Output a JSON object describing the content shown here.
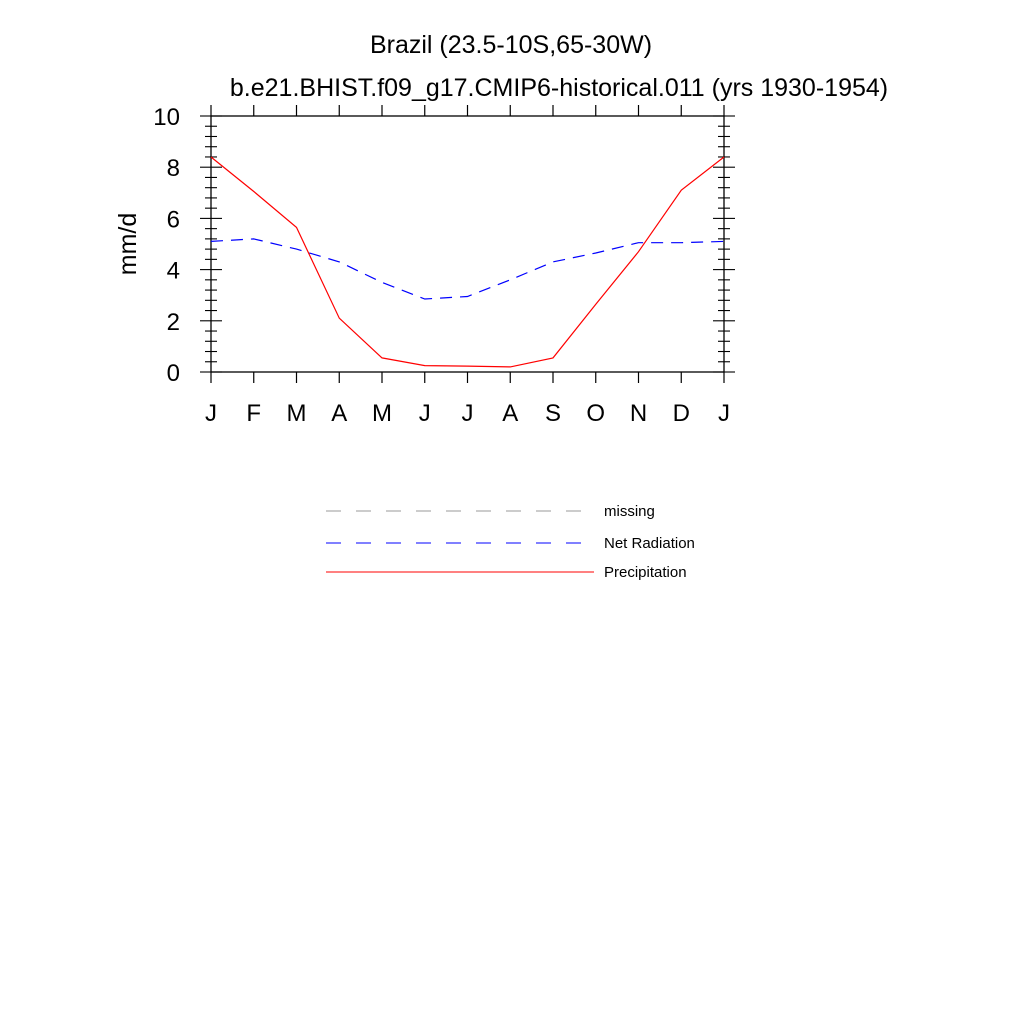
{
  "chart_data": {
    "type": "line",
    "title": "Brazil (23.5-10S,65-30W)",
    "subtitle": "b.e21.BHIST.f09_g17.CMIP6-historical.011 (yrs 1930-1954)",
    "ylabel": "mm/d",
    "xlabel": "",
    "categories": [
      "J",
      "F",
      "M",
      "A",
      "M",
      "J",
      "J",
      "A",
      "S",
      "O",
      "N",
      "D",
      "J"
    ],
    "ylim": [
      0,
      10
    ],
    "yticks": [
      0,
      2,
      4,
      6,
      8,
      10
    ],
    "ytick_labels": [
      "0",
      "2",
      "4",
      "6",
      "8",
      "10"
    ],
    "series": [
      {
        "name": "Net Radiation",
        "color": "#0000ff",
        "style": "dashed",
        "values": [
          5.1,
          5.2,
          4.8,
          4.3,
          3.5,
          2.85,
          2.95,
          3.6,
          4.3,
          4.65,
          5.05,
          5.05,
          5.1
        ]
      },
      {
        "name": "Precipitation",
        "color": "#ff0000",
        "style": "solid",
        "values": [
          8.4,
          7.05,
          5.65,
          2.1,
          0.55,
          0.25,
          0.23,
          0.2,
          0.55,
          2.65,
          4.7,
          7.1,
          8.4
        ]
      }
    ],
    "legend": {
      "placement": "below",
      "entries": [
        {
          "label": "missing",
          "color": "#999999",
          "style": "dashed"
        },
        {
          "label": "Net Radiation",
          "color": "#0000ff",
          "style": "dashed"
        },
        {
          "label": "Precipitation",
          "color": "#ff0000",
          "style": "solid"
        }
      ]
    },
    "grid": false
  }
}
